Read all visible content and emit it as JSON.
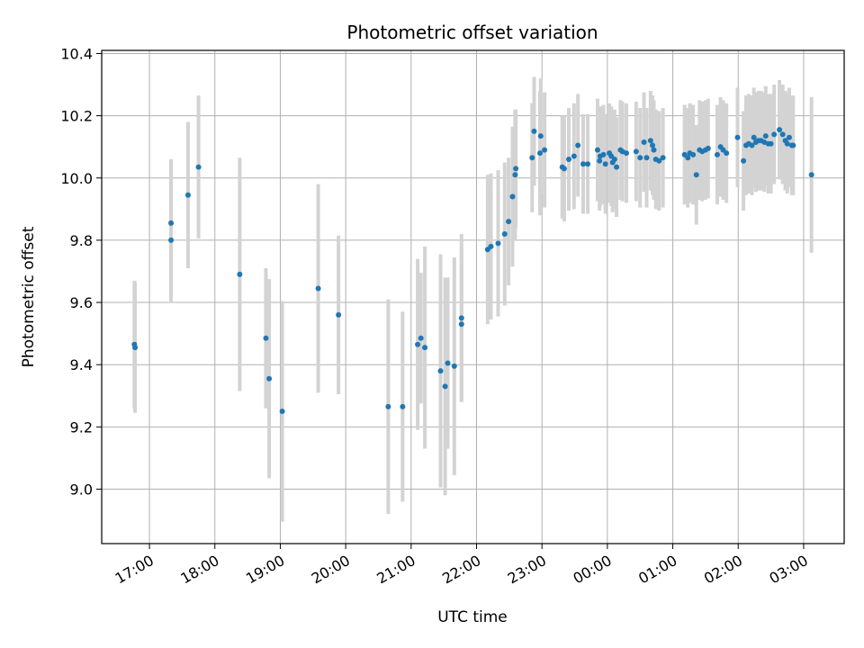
{
  "chart_data": {
    "type": "scatter",
    "title": "Photometric offset variation",
    "xlabel": "UTC time",
    "ylabel": "Photometric offset",
    "x_unit": "hours (UTC, continuing past midnight)",
    "xlim": [
      16.27,
      27.62
    ],
    "ylim": [
      8.825,
      10.41
    ],
    "x_ticks": [
      {
        "value": 17,
        "label": "17:00"
      },
      {
        "value": 18,
        "label": "18:00"
      },
      {
        "value": 19,
        "label": "19:00"
      },
      {
        "value": 20,
        "label": "20:00"
      },
      {
        "value": 21,
        "label": "21:00"
      },
      {
        "value": 22,
        "label": "22:00"
      },
      {
        "value": 23,
        "label": "23:00"
      },
      {
        "value": 24,
        "label": "00:00"
      },
      {
        "value": 25,
        "label": "01:00"
      },
      {
        "value": 26,
        "label": "02:00"
      },
      {
        "value": 27,
        "label": "03:00"
      }
    ],
    "y_ticks": [
      {
        "value": 9.0,
        "label": "9.0"
      },
      {
        "value": 9.2,
        "label": "9.2"
      },
      {
        "value": 9.4,
        "label": "9.4"
      },
      {
        "value": 9.6,
        "label": "9.6"
      },
      {
        "value": 9.8,
        "label": "9.8"
      },
      {
        "value": 10.0,
        "label": "10.0"
      },
      {
        "value": 10.2,
        "label": "10.2"
      },
      {
        "value": 10.4,
        "label": "10.4"
      }
    ],
    "grid": true,
    "marker_color": "#1f77b4",
    "errorbar_color": "#d3d3d3",
    "points": [
      {
        "x": 16.77,
        "y": 9.465,
        "err": 0.205
      },
      {
        "x": 16.78,
        "y": 9.455,
        "err": 0.21
      },
      {
        "x": 17.33,
        "y": 9.855,
        "err": 0.205
      },
      {
        "x": 17.33,
        "y": 9.8,
        "err": 0.2
      },
      {
        "x": 17.59,
        "y": 9.945,
        "err": 0.235
      },
      {
        "x": 17.75,
        "y": 10.035,
        "err": 0.23
      },
      {
        "x": 18.38,
        "y": 9.69,
        "err": 0.375
      },
      {
        "x": 18.78,
        "y": 9.485,
        "err": 0.225
      },
      {
        "x": 18.83,
        "y": 9.355,
        "err": 0.32
      },
      {
        "x": 19.03,
        "y": 9.25,
        "err": 0.355
      },
      {
        "x": 19.58,
        "y": 9.645,
        "err": 0.335
      },
      {
        "x": 19.89,
        "y": 9.56,
        "err": 0.255
      },
      {
        "x": 20.65,
        "y": 9.265,
        "err": 0.345
      },
      {
        "x": 20.87,
        "y": 9.265,
        "err": 0.305
      },
      {
        "x": 21.1,
        "y": 9.465,
        "err": 0.275
      },
      {
        "x": 21.15,
        "y": 9.485,
        "err": 0.21
      },
      {
        "x": 21.21,
        "y": 9.455,
        "err": 0.325
      },
      {
        "x": 21.45,
        "y": 9.38,
        "err": 0.375
      },
      {
        "x": 21.52,
        "y": 9.33,
        "err": 0.35
      },
      {
        "x": 21.56,
        "y": 9.405,
        "err": 0.275
      },
      {
        "x": 21.66,
        "y": 9.395,
        "err": 0.35
      },
      {
        "x": 21.77,
        "y": 9.55,
        "err": 0.27
      },
      {
        "x": 21.77,
        "y": 9.53,
        "err": 0.245
      },
      {
        "x": 22.17,
        "y": 9.77,
        "err": 0.24
      },
      {
        "x": 22.22,
        "y": 9.78,
        "err": 0.235
      },
      {
        "x": 22.33,
        "y": 9.79,
        "err": 0.235
      },
      {
        "x": 22.43,
        "y": 9.82,
        "err": 0.23
      },
      {
        "x": 22.49,
        "y": 9.86,
        "err": 0.205
      },
      {
        "x": 22.55,
        "y": 9.94,
        "err": 0.225
      },
      {
        "x": 22.59,
        "y": 10.01,
        "err": 0.21
      },
      {
        "x": 22.6,
        "y": 10.03,
        "err": 0.19
      },
      {
        "x": 22.85,
        "y": 10.065,
        "err": 0.175
      },
      {
        "x": 22.88,
        "y": 10.15,
        "err": 0.175
      },
      {
        "x": 22.97,
        "y": 10.08,
        "err": 0.2
      },
      {
        "x": 22.98,
        "y": 10.135,
        "err": 0.185
      },
      {
        "x": 23.04,
        "y": 10.09,
        "err": 0.185
      },
      {
        "x": 23.31,
        "y": 10.035,
        "err": 0.165
      },
      {
        "x": 23.34,
        "y": 10.03,
        "err": 0.17
      },
      {
        "x": 23.41,
        "y": 10.06,
        "err": 0.165
      },
      {
        "x": 23.49,
        "y": 10.07,
        "err": 0.17
      },
      {
        "x": 23.55,
        "y": 10.105,
        "err": 0.165
      },
      {
        "x": 23.63,
        "y": 10.045,
        "err": 0.16
      },
      {
        "x": 23.7,
        "y": 10.045,
        "err": 0.16
      },
      {
        "x": 23.85,
        "y": 10.09,
        "err": 0.165
      },
      {
        "x": 23.88,
        "y": 10.055,
        "err": 0.16
      },
      {
        "x": 23.89,
        "y": 10.07,
        "err": 0.16
      },
      {
        "x": 23.94,
        "y": 10.075,
        "err": 0.16
      },
      {
        "x": 23.97,
        "y": 10.045,
        "err": 0.16
      },
      {
        "x": 24.03,
        "y": 10.08,
        "err": 0.16
      },
      {
        "x": 24.06,
        "y": 10.07,
        "err": 0.16
      },
      {
        "x": 24.08,
        "y": 10.05,
        "err": 0.16
      },
      {
        "x": 24.11,
        "y": 10.06,
        "err": 0.16
      },
      {
        "x": 24.14,
        "y": 10.035,
        "err": 0.16
      },
      {
        "x": 24.2,
        "y": 10.09,
        "err": 0.16
      },
      {
        "x": 24.23,
        "y": 10.085,
        "err": 0.16
      },
      {
        "x": 24.29,
        "y": 10.08,
        "err": 0.16
      },
      {
        "x": 24.44,
        "y": 10.085,
        "err": 0.16
      },
      {
        "x": 24.5,
        "y": 10.065,
        "err": 0.16
      },
      {
        "x": 24.56,
        "y": 10.115,
        "err": 0.16
      },
      {
        "x": 24.6,
        "y": 10.065,
        "err": 0.16
      },
      {
        "x": 24.66,
        "y": 10.12,
        "err": 0.16
      },
      {
        "x": 24.69,
        "y": 10.105,
        "err": 0.16
      },
      {
        "x": 24.71,
        "y": 10.09,
        "err": 0.16
      },
      {
        "x": 24.74,
        "y": 10.06,
        "err": 0.16
      },
      {
        "x": 24.79,
        "y": 10.055,
        "err": 0.16
      },
      {
        "x": 24.85,
        "y": 10.065,
        "err": 0.16
      },
      {
        "x": 25.18,
        "y": 10.075,
        "err": 0.16
      },
      {
        "x": 25.23,
        "y": 10.065,
        "err": 0.16
      },
      {
        "x": 25.26,
        "y": 10.08,
        "err": 0.16
      },
      {
        "x": 25.31,
        "y": 10.075,
        "err": 0.16
      },
      {
        "x": 25.36,
        "y": 10.01,
        "err": 0.16
      },
      {
        "x": 25.41,
        "y": 10.09,
        "err": 0.16
      },
      {
        "x": 25.45,
        "y": 10.085,
        "err": 0.16
      },
      {
        "x": 25.5,
        "y": 10.09,
        "err": 0.16
      },
      {
        "x": 25.54,
        "y": 10.095,
        "err": 0.16
      },
      {
        "x": 25.68,
        "y": 10.075,
        "err": 0.16
      },
      {
        "x": 25.73,
        "y": 10.1,
        "err": 0.16
      },
      {
        "x": 25.77,
        "y": 10.09,
        "err": 0.16
      },
      {
        "x": 25.82,
        "y": 10.08,
        "err": 0.16
      },
      {
        "x": 25.99,
        "y": 10.13,
        "err": 0.16
      },
      {
        "x": 26.08,
        "y": 10.055,
        "err": 0.16
      },
      {
        "x": 26.12,
        "y": 10.105,
        "err": 0.16
      },
      {
        "x": 26.16,
        "y": 10.11,
        "err": 0.16
      },
      {
        "x": 26.21,
        "y": 10.105,
        "err": 0.16
      },
      {
        "x": 26.24,
        "y": 10.13,
        "err": 0.16
      },
      {
        "x": 26.27,
        "y": 10.115,
        "err": 0.16
      },
      {
        "x": 26.31,
        "y": 10.12,
        "err": 0.16
      },
      {
        "x": 26.35,
        "y": 10.12,
        "err": 0.16
      },
      {
        "x": 26.4,
        "y": 10.115,
        "err": 0.16
      },
      {
        "x": 26.42,
        "y": 10.135,
        "err": 0.16
      },
      {
        "x": 26.46,
        "y": 10.11,
        "err": 0.16
      },
      {
        "x": 26.5,
        "y": 10.11,
        "err": 0.16
      },
      {
        "x": 26.55,
        "y": 10.14,
        "err": 0.16
      },
      {
        "x": 26.63,
        "y": 10.155,
        "err": 0.16
      },
      {
        "x": 26.68,
        "y": 10.14,
        "err": 0.16
      },
      {
        "x": 26.72,
        "y": 10.12,
        "err": 0.16
      },
      {
        "x": 26.75,
        "y": 10.11,
        "err": 0.16
      },
      {
        "x": 26.78,
        "y": 10.13,
        "err": 0.16
      },
      {
        "x": 26.82,
        "y": 10.105,
        "err": 0.16
      },
      {
        "x": 26.84,
        "y": 10.105,
        "err": 0.16
      },
      {
        "x": 27.12,
        "y": 10.01,
        "err": 0.25
      }
    ]
  }
}
